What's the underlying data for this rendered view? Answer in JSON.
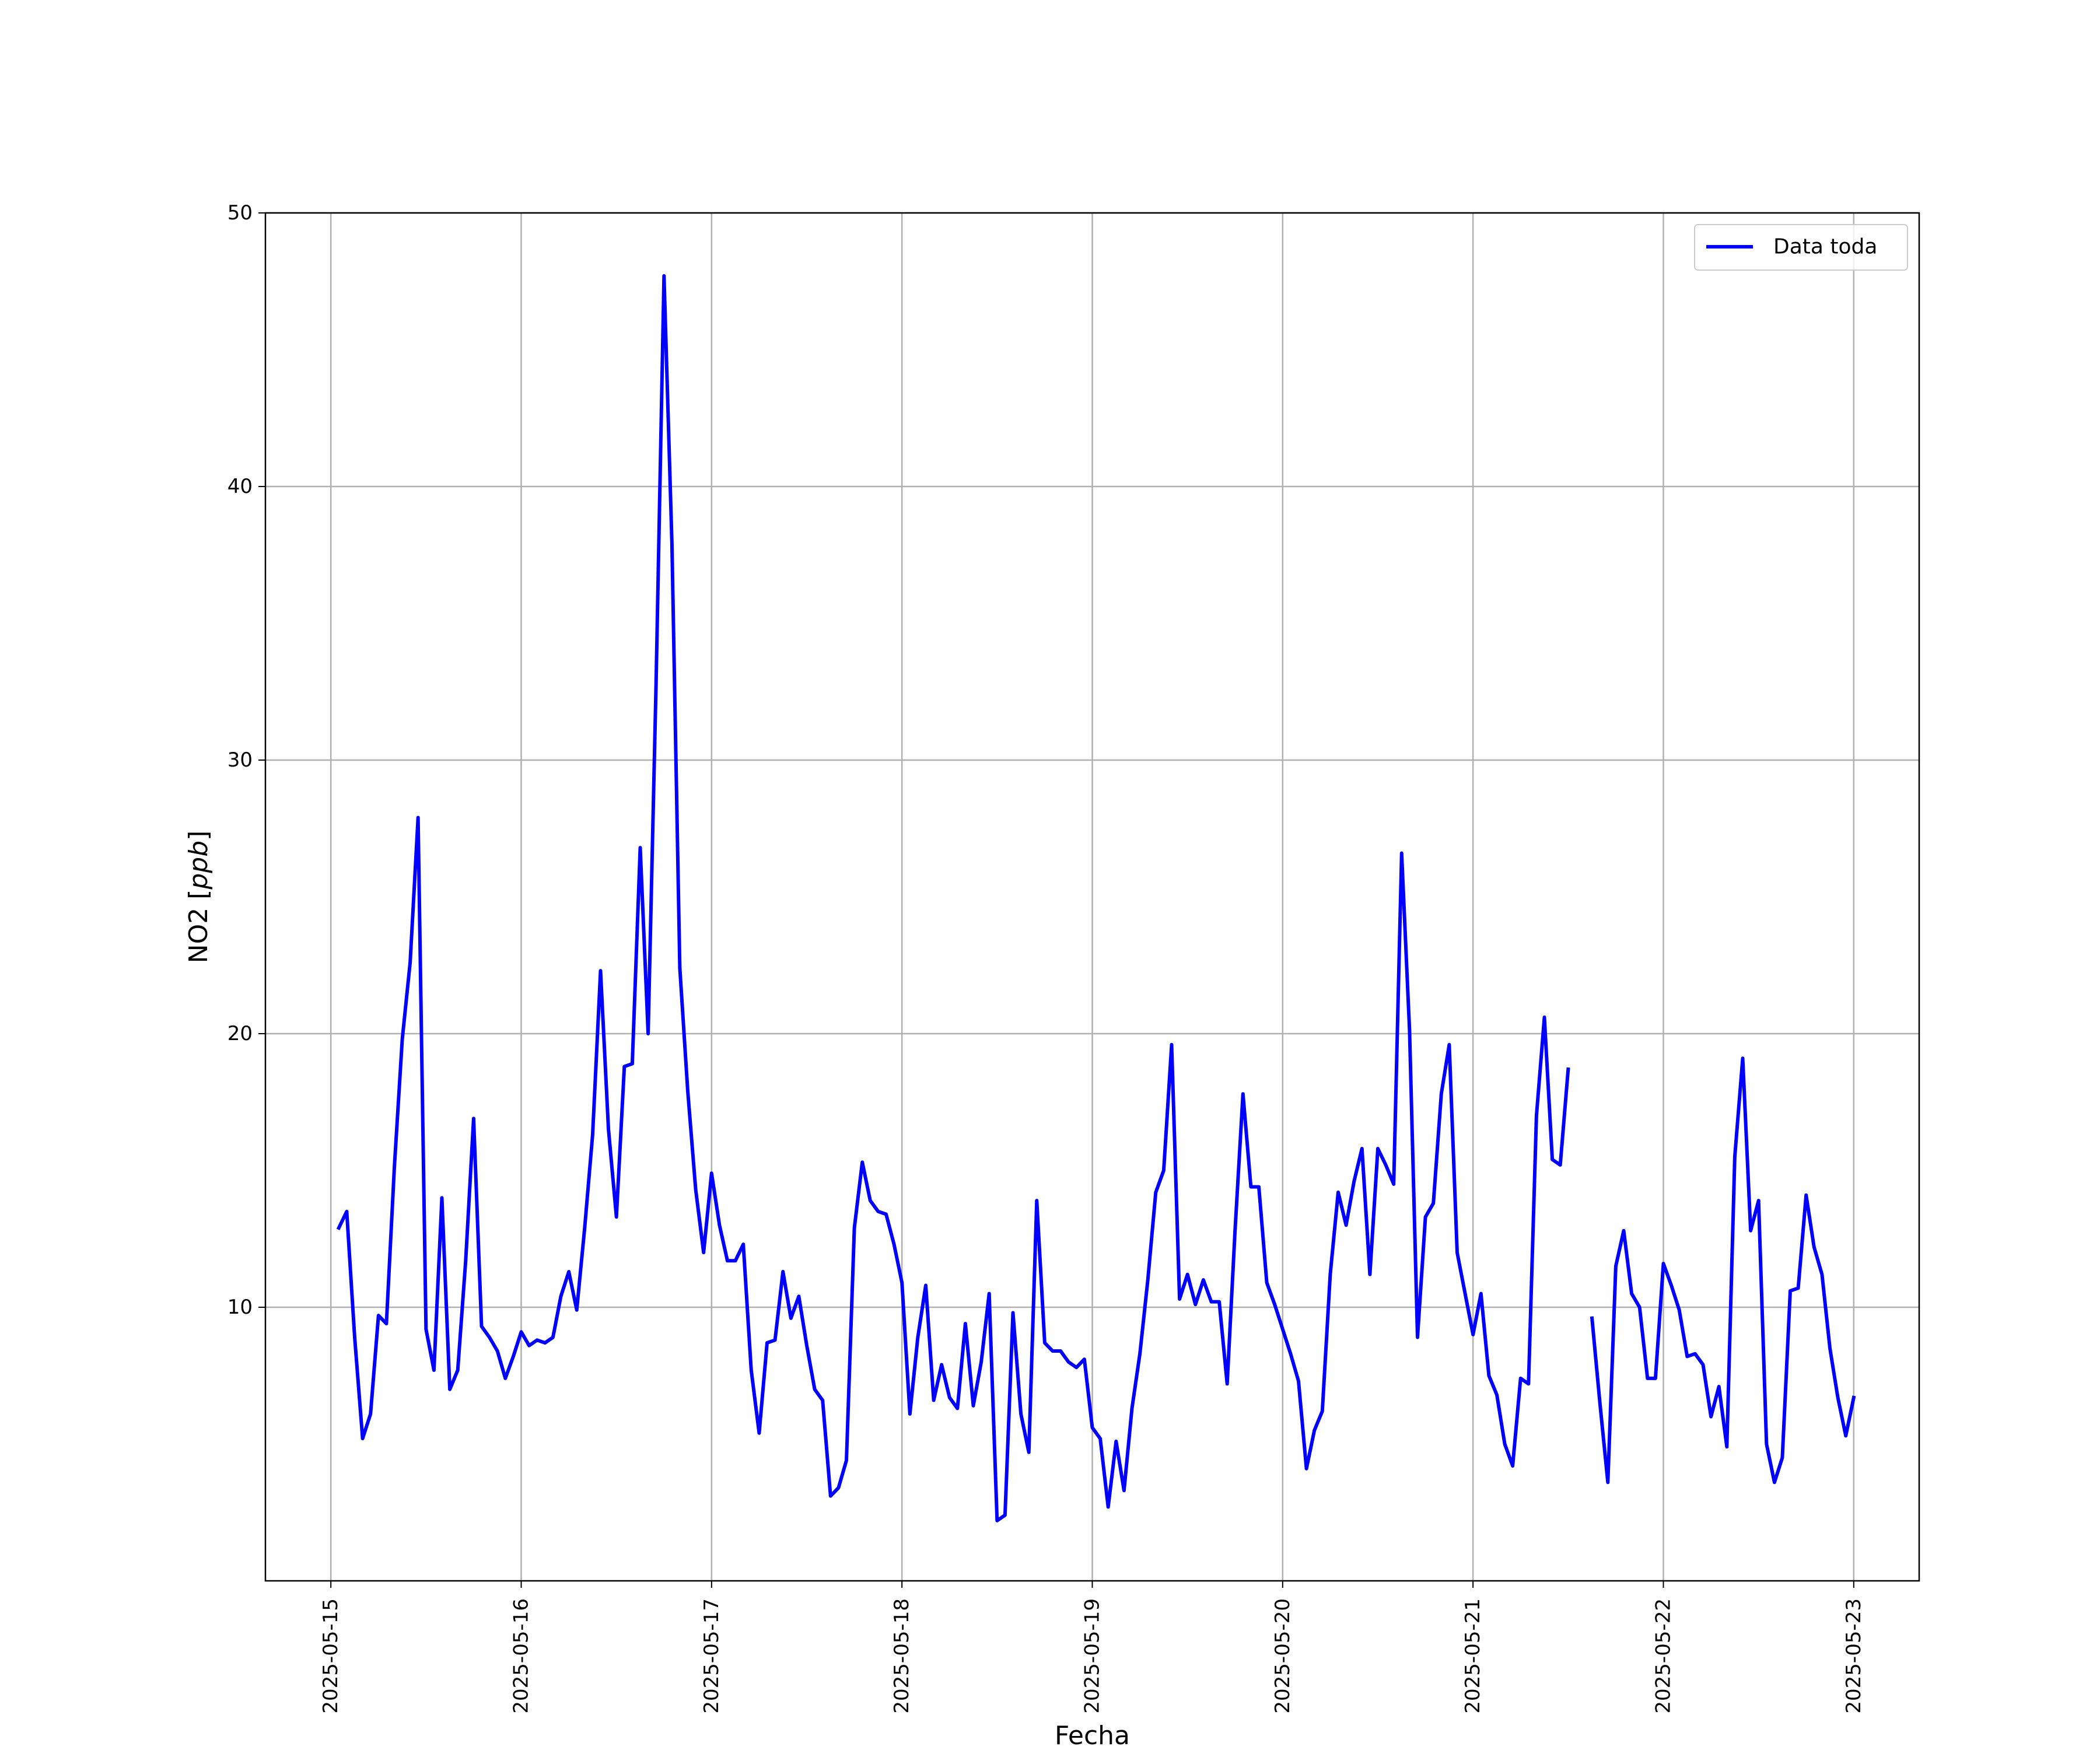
{
  "chart_data": {
    "type": "line",
    "xlabel": "Fecha",
    "ylabel_main": "NO2 [",
    "ylabel_unit": "ppb",
    "ylabel_close": "]",
    "xlim": [
      "2025-05-14 15:45",
      "2025-05-23 08:15"
    ],
    "ylim": [
      0,
      50
    ],
    "grid": true,
    "legend_position": "top-right",
    "x_ticks": [
      "2025-05-15",
      "2025-05-16",
      "2025-05-17",
      "2025-05-18",
      "2025-05-19",
      "2025-05-20",
      "2025-05-21",
      "2025-05-22",
      "2025-05-23"
    ],
    "y_ticks": [
      10,
      20,
      30,
      40,
      50
    ],
    "series": [
      {
        "name": "Data toda",
        "color": "#0000ff",
        "x_start": "2025-05-15 01:00",
        "x_step_hours": 1,
        "values": [
          12.9,
          13.5,
          8.9,
          5.2,
          6.1,
          9.7,
          9.4,
          15.1,
          19.8,
          22.6,
          27.9,
          9.2,
          7.7,
          14.0,
          7.0,
          7.7,
          11.7,
          16.9,
          9.3,
          8.9,
          8.4,
          7.4,
          8.2,
          9.1,
          8.6,
          8.8,
          8.7,
          8.9,
          10.4,
          11.3,
          9.9,
          12.9,
          16.3,
          22.3,
          16.5,
          13.3,
          18.8,
          18.9,
          26.8,
          20.0,
          32.8,
          47.7,
          37.9,
          22.4,
          17.9,
          14.3,
          12.0,
          14.9,
          13.0,
          11.7,
          11.7,
          12.3,
          7.7,
          5.4,
          8.7,
          8.8,
          11.3,
          9.6,
          10.4,
          8.6,
          7.0,
          6.6,
          3.1,
          3.4,
          4.4,
          12.9,
          15.3,
          13.9,
          13.5,
          13.4,
          12.3,
          10.9,
          6.1,
          8.9,
          10.8,
          6.6,
          7.9,
          6.7,
          6.3,
          9.4,
          6.4,
          8.0,
          10.5,
          2.2,
          2.4,
          9.8,
          6.1,
          4.7,
          13.9,
          8.7,
          8.4,
          8.4,
          8.0,
          7.8,
          8.1,
          5.6,
          5.2,
          2.7,
          5.1,
          3.3,
          6.3,
          8.3,
          11.0,
          14.2,
          15.0,
          19.6,
          10.3,
          11.2,
          10.1,
          11.0,
          10.2,
          10.2,
          7.2,
          12.8,
          17.8,
          14.4,
          14.4,
          10.9,
          10.1,
          9.2,
          8.3,
          7.3,
          4.1,
          5.5,
          6.2,
          11.2,
          14.2,
          13.0,
          14.6,
          15.8,
          11.2,
          15.8,
          15.2,
          14.5,
          26.6,
          20.1,
          8.9,
          13.3,
          13.8,
          17.8,
          19.6,
          12.0,
          10.5,
          9.0,
          10.5,
          7.5,
          6.8,
          5.0,
          4.2,
          7.4,
          7.2,
          17.0,
          20.6,
          15.4,
          15.2,
          18.7,
          null,
          null,
          9.6,
          6.5,
          3.6,
          11.5,
          12.8,
          10.5,
          10.0,
          7.4,
          7.4,
          11.6,
          10.8,
          9.9,
          8.2,
          8.3,
          7.9,
          6.0,
          7.1,
          4.9,
          15.5,
          19.1,
          12.8,
          13.9,
          5.0,
          3.6,
          4.5,
          10.6,
          10.7,
          14.1,
          12.2,
          11.2,
          8.5,
          6.7,
          5.3,
          6.7
        ]
      }
    ]
  }
}
